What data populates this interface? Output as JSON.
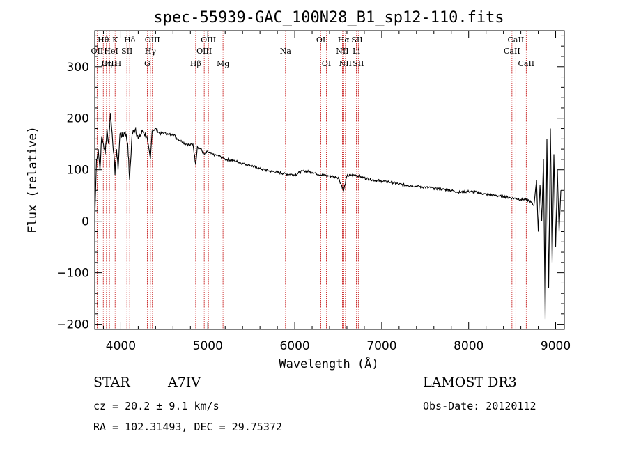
{
  "chart_data": {
    "type": "line",
    "title": "spec-55939-GAC_100N28_B1_sp12-110.fits",
    "xlabel": "Wavelength (Å)",
    "ylabel": "Flux (relative)",
    "xlim": [
      3700,
      9100
    ],
    "ylim": [
      -210,
      370
    ],
    "xticks": [
      4000,
      5000,
      6000,
      7000,
      8000,
      9000
    ],
    "yticks": [
      -200,
      -100,
      0,
      100,
      200,
      300
    ],
    "series": [
      {
        "name": "spectrum",
        "x": [
          3700,
          3720,
          3740,
          3760,
          3780,
          3800,
          3820,
          3840,
          3860,
          3880,
          3900,
          3920,
          3933,
          3950,
          3968,
          3990,
          4020,
          4050,
          4080,
          4101,
          4130,
          4170,
          4200,
          4250,
          4300,
          4340,
          4360,
          4400,
          4450,
          4500,
          4550,
          4600,
          4650,
          4700,
          4750,
          4800,
          4830,
          4861,
          4880,
          4920,
          4960,
          5000,
          5050,
          5100,
          5150,
          5200,
          5300,
          5400,
          5500,
          5600,
          5700,
          5800,
          5900,
          6000,
          6100,
          6200,
          6300,
          6400,
          6500,
          6563,
          6600,
          6700,
          6800,
          6900,
          7000,
          7100,
          7200,
          7300,
          7400,
          7500,
          7600,
          7700,
          7800,
          7900,
          8000,
          8100,
          8200,
          8300,
          8400,
          8500,
          8550,
          8600,
          8650,
          8700,
          8750,
          8780,
          8800,
          8820,
          8840,
          8860,
          8880,
          8900,
          8920,
          8940,
          8960,
          8980,
          9000,
          9020,
          9040,
          9060
        ],
        "y": [
          0,
          120,
          140,
          100,
          165,
          150,
          130,
          180,
          150,
          210,
          170,
          130,
          90,
          140,
          100,
          170,
          165,
          175,
          150,
          80,
          170,
          180,
          160,
          175,
          165,
          120,
          175,
          180,
          170,
          172,
          168,
          170,
          160,
          155,
          150,
          148,
          150,
          110,
          145,
          140,
          130,
          135,
          130,
          128,
          125,
          120,
          118,
          112,
          108,
          102,
          98,
          95,
          92,
          90,
          98,
          95,
          90,
          88,
          85,
          60,
          88,
          90,
          84,
          80,
          78,
          76,
          72,
          70,
          68,
          66,
          64,
          62,
          60,
          56,
          58,
          56,
          52,
          50,
          48,
          45,
          44,
          42,
          42,
          40,
          30,
          80,
          -20,
          70,
          0,
          120,
          -190,
          160,
          -130,
          180,
          -80,
          130,
          -50,
          100,
          -20,
          60
        ]
      }
    ],
    "spectral_lines": [
      {
        "label": "OII",
        "wavelength": 3727,
        "row": 2
      },
      {
        "label": "Hθ",
        "wavelength": 3798,
        "row": 1
      },
      {
        "label": "Hη",
        "wavelength": 3835,
        "row": 3
      },
      {
        "label": "OIII",
        "wavelength": 3869,
        "row": 3
      },
      {
        "label": "HeI",
        "wavelength": 3889,
        "row": 2
      },
      {
        "label": "K",
        "wavelength": 3934,
        "row": 1
      },
      {
        "label": "H",
        "wavelength": 3968,
        "row": 3
      },
      {
        "label": "SII",
        "wavelength": 4070,
        "row": 2
      },
      {
        "label": "Hδ",
        "wavelength": 4102,
        "row": 1
      },
      {
        "label": "G",
        "wavelength": 4304,
        "row": 3
      },
      {
        "label": "Hγ",
        "wavelength": 4340,
        "row": 2
      },
      {
        "label": "OIII",
        "wavelength": 4363,
        "row": 1
      },
      {
        "label": "Hβ",
        "wavelength": 4861,
        "row": 3
      },
      {
        "label": "OIII",
        "wavelength": 4959,
        "row": 2
      },
      {
        "label": "OIII",
        "wavelength": 5007,
        "row": 1
      },
      {
        "label": "Mg",
        "wavelength": 5175,
        "row": 3
      },
      {
        "label": "Na",
        "wavelength": 5894,
        "row": 2
      },
      {
        "label": "OI",
        "wavelength": 6300,
        "row": 1
      },
      {
        "label": "OI",
        "wavelength": 6364,
        "row": 3
      },
      {
        "label": "NII",
        "wavelength": 6548,
        "row": 2
      },
      {
        "label": "Hα",
        "wavelength": 6563,
        "row": 1
      },
      {
        "label": "NII",
        "wavelength": 6583,
        "row": 3
      },
      {
        "label": "Li",
        "wavelength": 6708,
        "row": 2
      },
      {
        "label": "SII",
        "wavelength": 6716,
        "row": 1
      },
      {
        "label": "SII",
        "wavelength": 6731,
        "row": 3
      },
      {
        "label": "CaII",
        "wavelength": 8498,
        "row": 2
      },
      {
        "label": "CaII",
        "wavelength": 8542,
        "row": 1
      },
      {
        "label": "CaII",
        "wavelength": 8662,
        "row": 3
      }
    ]
  },
  "info": {
    "object_class": "STAR",
    "subclass": "A7IV",
    "survey": "LAMOST DR3",
    "redshift": "cz = 20.2 ± 9.1 km/s",
    "obs_date": "Obs-Date: 20120112",
    "coords": "RA = 102.31493, DEC =  29.75372"
  },
  "colors": {
    "line_marker": "#c00000",
    "spectrum": "#000000"
  }
}
